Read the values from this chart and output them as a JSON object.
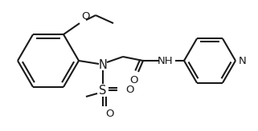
{
  "bg_color": "#ffffff",
  "line_color": "#1a1a1a",
  "line_width": 1.5,
  "font_size": 8.5,
  "figsize": [
    3.21,
    1.64
  ],
  "dpi": 100,
  "layout": {
    "xlim": [
      0,
      321
    ],
    "ylim": [
      0,
      164
    ]
  }
}
